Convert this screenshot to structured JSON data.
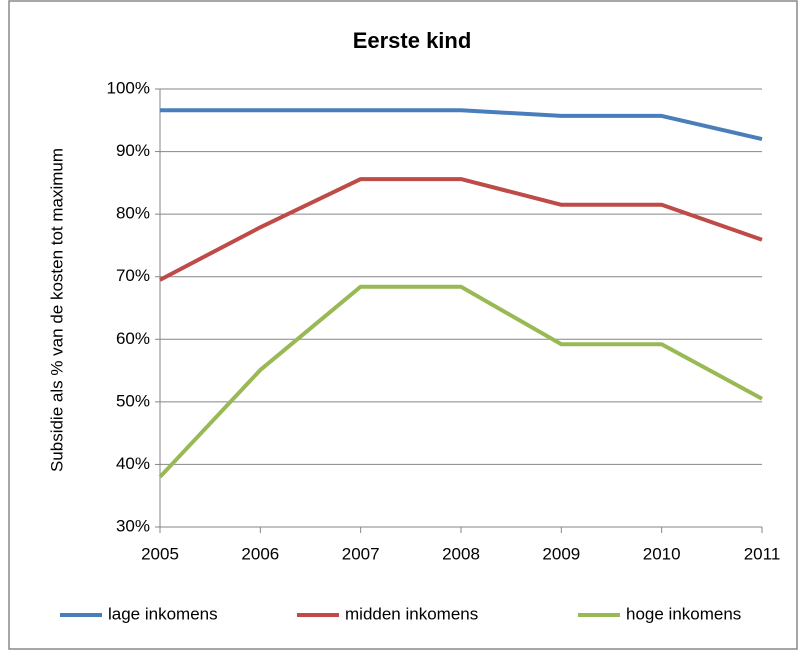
{
  "chart_data": {
    "type": "line",
    "title": "Eerste kind",
    "y_label": "Subsidie als %  van de kosten tot maximum",
    "x": [
      2005,
      2006,
      2007,
      2008,
      2009,
      2010,
      2011
    ],
    "xlim": [
      2005,
      2011
    ],
    "xticks": [
      2005,
      2006,
      2007,
      2008,
      2009,
      2010,
      2011
    ],
    "ylim": [
      30,
      100
    ],
    "yticks": [
      {
        "value": 30,
        "label": "30%"
      },
      {
        "value": 40,
        "label": "40%"
      },
      {
        "value": 50,
        "label": "50%"
      },
      {
        "value": 60,
        "label": "60%"
      },
      {
        "value": 70,
        "label": "70%"
      },
      {
        "value": 80,
        "label": "80%"
      },
      {
        "value": 90,
        "label": "90%"
      },
      {
        "value": 100,
        "label": "100%"
      }
    ],
    "grid": true,
    "legend": "bottom",
    "series": [
      {
        "name": "lage inkomens",
        "color": "#4a7ebb",
        "values": [
          96.6,
          96.6,
          96.6,
          96.6,
          95.7,
          95.7,
          92
        ]
      },
      {
        "name": "midden inkomens",
        "color": "#be4b48",
        "values": [
          69.5,
          77.9,
          85.6,
          85.6,
          81.5,
          81.5,
          75.9
        ]
      },
      {
        "name": "hoge inkomens",
        "color": "#98b954",
        "values": [
          38,
          55.1,
          68.4,
          68.4,
          59.2,
          59.2,
          50.5
        ]
      }
    ]
  }
}
